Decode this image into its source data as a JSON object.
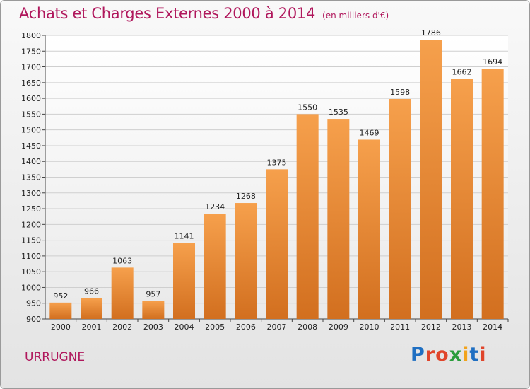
{
  "page": {
    "title": "Achats et Charges Externes 2000 à 2014",
    "subtitle": "(en milliers d'€)",
    "town": "URRUGNE",
    "logo": {
      "text": "Proxiti",
      "letter_colors": [
        "#1f6fc2",
        "#e0452b",
        "#e0452b",
        "#2a9d3c",
        "#f2a31b",
        "#1f6fc2",
        "#e0452b"
      ]
    }
  },
  "chart_data": {
    "type": "bar",
    "title": "Achats et Charges Externes 2000 à 2014",
    "subtitle": "(en milliers d'€)",
    "categories": [
      "2000",
      "2001",
      "2002",
      "2003",
      "2004",
      "2005",
      "2006",
      "2007",
      "2008",
      "2009",
      "2010",
      "2011",
      "2012",
      "2013",
      "2014"
    ],
    "values": [
      952,
      966,
      1063,
      957,
      1141,
      1234,
      1268,
      1375,
      1550,
      1535,
      1469,
      1598,
      1786,
      1662,
      1694
    ],
    "ylim": [
      900,
      1800
    ],
    "yticks": [
      900,
      950,
      1000,
      1050,
      1100,
      1150,
      1200,
      1250,
      1300,
      1350,
      1400,
      1450,
      1500,
      1550,
      1600,
      1650,
      1700,
      1750,
      1800
    ],
    "grid": true,
    "bar_color": "#f0913a",
    "bar_color_dark": "#d06d1e"
  }
}
